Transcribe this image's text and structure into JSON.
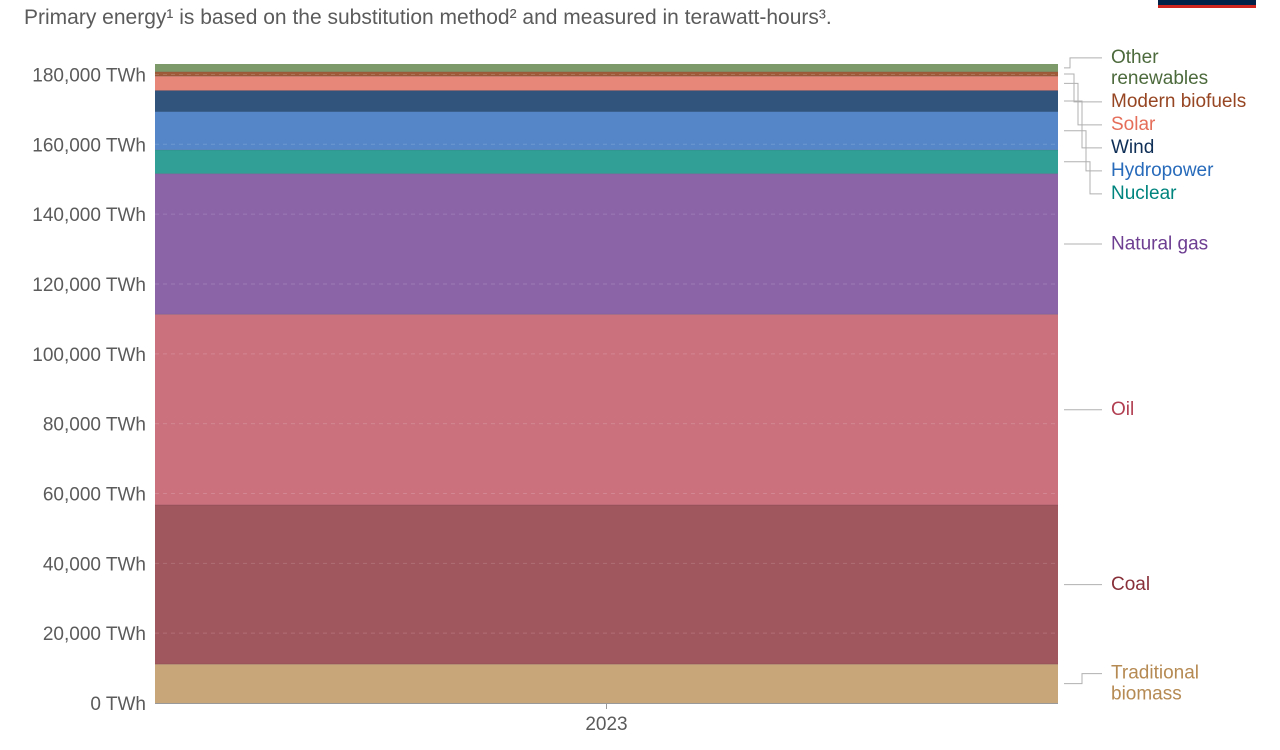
{
  "subtitle": "Primary energy¹ is based on the substitution method² and measured in terawatt-hours³.",
  "chart_data": {
    "type": "bar",
    "stacked": true,
    "categories": [
      "2023"
    ],
    "ylim": [
      0,
      183000
    ],
    "yticks": [
      0,
      20000,
      40000,
      60000,
      80000,
      100000,
      120000,
      140000,
      160000,
      180000
    ],
    "ytick_labels": [
      "0 TWh",
      "20,000 TWh",
      "40,000 TWh",
      "60,000 TWh",
      "80,000 TWh",
      "100,000 TWh",
      "120,000 TWh",
      "140,000 TWh",
      "160,000 TWh",
      "180,000 TWh"
    ],
    "grid": true,
    "legend_position": "right",
    "series": [
      {
        "name": "Traditional biomass",
        "values": [
          11100
        ],
        "color": "#c9a57a",
        "text_color": "#b68a53",
        "label_lines": [
          "Traditional",
          "biomass"
        ]
      },
      {
        "name": "Coal",
        "values": [
          45600
        ],
        "color": "#a1575e",
        "text_color": "#883039",
        "label_lines": [
          "Coal"
        ]
      },
      {
        "name": "Oil",
        "values": [
          54600
        ],
        "color": "#cb717e",
        "text_color": "#b13f51",
        "label_lines": [
          "Oil"
        ]
      },
      {
        "name": "Natural gas",
        "values": [
          40300
        ],
        "color": "#8b64a8",
        "text_color": "#6d3e91",
        "label_lines": [
          "Natural gas"
        ]
      },
      {
        "name": "Nuclear",
        "values": [
          6800
        ],
        "color": "#329f97",
        "text_color": "#00847e",
        "label_lines": [
          "Nuclear"
        ]
      },
      {
        "name": "Hydropower",
        "values": [
          11000
        ],
        "color": "#5586c8",
        "text_color": "#286bbb",
        "label_lines": [
          "Hydropower"
        ]
      },
      {
        "name": "Wind",
        "values": [
          6000
        ],
        "color": "#30547c",
        "text_color": "#0f2f57",
        "label_lines": [
          "Wind"
        ]
      },
      {
        "name": "Solar",
        "values": [
          4100
        ],
        "color": "#e7877a",
        "text_color": "#e56e5a",
        "label_lines": [
          "Solar"
        ]
      },
      {
        "name": "Modern biofuels",
        "values": [
          1300
        ],
        "color": "#9f5b3a",
        "text_color": "#974623",
        "label_lines": [
          "Modern biofuels"
        ]
      },
      {
        "name": "Other renewables",
        "values": [
          2200
        ],
        "color": "#7c9a6a",
        "text_color": "#4c6a3c",
        "label_lines": [
          "Other",
          "renewables"
        ]
      }
    ]
  }
}
